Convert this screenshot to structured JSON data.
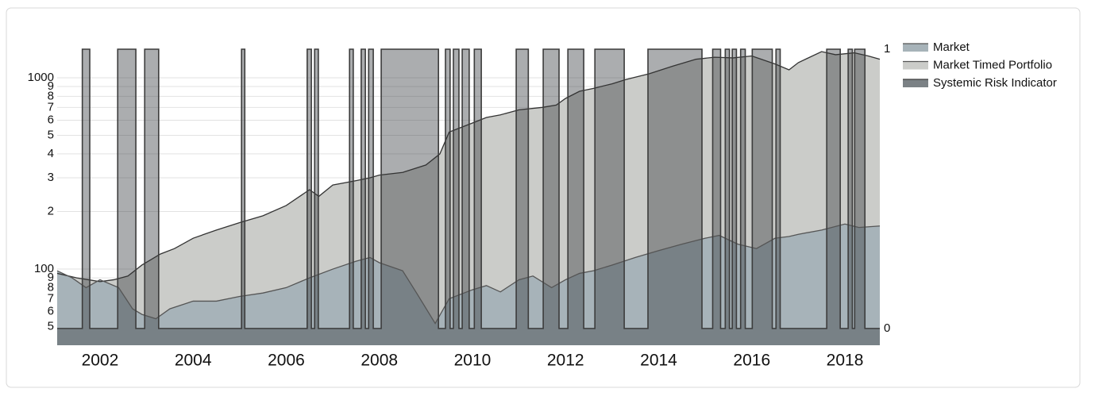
{
  "chart_data": {
    "type": "area",
    "xlim": [
      2001.08,
      2018.75
    ],
    "xticks": [
      2002,
      2004,
      2006,
      2008,
      2010,
      2012,
      2014,
      2016,
      2018
    ],
    "ylim": [
      40,
      1410
    ],
    "log_scale": true,
    "yticks": [
      {
        "value": 50,
        "label": "5"
      },
      {
        "value": 60,
        "label": "6"
      },
      {
        "value": 70,
        "label": "7"
      },
      {
        "value": 80,
        "label": "8"
      },
      {
        "value": 90,
        "label": "9"
      },
      100,
      {
        "value": 200,
        "label": "2"
      },
      {
        "value": 300,
        "label": "3"
      },
      {
        "value": 400,
        "label": "4"
      },
      {
        "value": 500,
        "label": "5"
      },
      {
        "value": 600,
        "label": "6"
      },
      {
        "value": 700,
        "label": "7"
      },
      {
        "value": 800,
        "label": "8"
      },
      {
        "value": 900,
        "label": "9"
      },
      1000
    ],
    "y2lim": [
      -0.06,
      1
    ],
    "y2ticks": [
      0,
      1
    ],
    "grid": true,
    "legend": "right",
    "series": [
      {
        "name": "Market",
        "color": "#a7b3b9",
        "x": [
          2001.08,
          2001.4,
          2001.7,
          2002.0,
          2002.4,
          2002.7,
          2002.9,
          2003.2,
          2003.5,
          2004.0,
          2004.5,
          2005.0,
          2005.5,
          2006.0,
          2006.5,
          2007.0,
          2007.5,
          2007.8,
          2008.0,
          2008.5,
          2008.8,
          2009.2,
          2009.5,
          2010.0,
          2010.3,
          2010.6,
          2011.0,
          2011.3,
          2011.7,
          2012.0,
          2012.3,
          2012.6,
          2013.0,
          2013.5,
          2014.0,
          2014.5,
          2015.0,
          2015.3,
          2015.7,
          2016.1,
          2016.5,
          2016.8,
          2017.0,
          2017.5,
          2018.0,
          2018.3,
          2018.75
        ],
        "values": [
          98,
          90,
          80,
          88,
          80,
          62,
          58,
          55,
          62,
          68,
          68,
          72,
          75,
          80,
          90,
          100,
          110,
          115,
          108,
          98,
          75,
          52,
          70,
          78,
          82,
          76,
          88,
          92,
          80,
          88,
          95,
          98,
          105,
          115,
          125,
          135,
          145,
          150,
          135,
          128,
          145,
          148,
          152,
          160,
          172,
          165,
          168
        ]
      },
      {
        "name": "Market Timed Portfolio",
        "color": "#cbccc9",
        "x": [
          2001.08,
          2001.5,
          2001.75,
          2002.0,
          2002.3,
          2002.6,
          2002.9,
          2003.3,
          2003.6,
          2004.0,
          2004.5,
          2005.0,
          2005.5,
          2006.0,
          2006.5,
          2006.7,
          2007.0,
          2007.5,
          2007.8,
          2008.0,
          2008.5,
          2009.0,
          2009.3,
          2009.5,
          2010.0,
          2010.3,
          2010.6,
          2011.0,
          2011.5,
          2011.8,
          2012.0,
          2012.3,
          2012.6,
          2013.0,
          2013.3,
          2013.8,
          2014.3,
          2014.8,
          2015.2,
          2015.6,
          2016.0,
          2016.5,
          2016.8,
          2017.0,
          2017.5,
          2017.8,
          2018.2,
          2018.5,
          2018.75
        ],
        "values": [
          95,
          90,
          88,
          86,
          88,
          92,
          105,
          120,
          128,
          145,
          160,
          175,
          190,
          215,
          260,
          240,
          275,
          290,
          300,
          310,
          320,
          350,
          400,
          520,
          580,
          620,
          640,
          680,
          700,
          720,
          780,
          850,
          880,
          930,
          980,
          1050,
          1150,
          1250,
          1280,
          1270,
          1300,
          1180,
          1100,
          1200,
          1370,
          1320,
          1350,
          1300,
          1250
        ]
      },
      {
        "name": "Systemic Risk Indicator",
        "color": "#3c3c3c",
        "axis": "y2",
        "x": [
          2001.08,
          2001.62,
          2001.78,
          2002.38,
          2002.77,
          2002.96,
          2003.26,
          2005.04,
          2005.11,
          2006.45,
          2006.54,
          2006.61,
          2006.69,
          2007.36,
          2007.44,
          2007.61,
          2007.7,
          2007.77,
          2007.87,
          2008.04,
          2009.27,
          2009.42,
          2009.52,
          2009.59,
          2009.71,
          2009.78,
          2009.93,
          2010.04,
          2010.19,
          2010.94,
          2011.2,
          2011.52,
          2011.86,
          2012.05,
          2012.39,
          2012.63,
          2013.26,
          2013.77,
          2014.93,
          2015.16,
          2015.33,
          2015.43,
          2015.52,
          2015.58,
          2015.67,
          2015.76,
          2015.86,
          2016.01,
          2016.44,
          2016.52,
          2016.61,
          2017.61,
          2017.9,
          2018.07,
          2018.16,
          2018.21,
          2018.43,
          2018.75
        ],
        "values": [
          0,
          1,
          0,
          1,
          0,
          1,
          0,
          1,
          0,
          1,
          0,
          1,
          0,
          1,
          0,
          1,
          0,
          1,
          0,
          1,
          0,
          1,
          0,
          1,
          0,
          1,
          0,
          1,
          0,
          1,
          0,
          1,
          0,
          1,
          0,
          1,
          0,
          1,
          0,
          1,
          0,
          1,
          0,
          1,
          0,
          1,
          0,
          1,
          0,
          1,
          0,
          1,
          0,
          1,
          0,
          1,
          0,
          0
        ]
      }
    ]
  }
}
